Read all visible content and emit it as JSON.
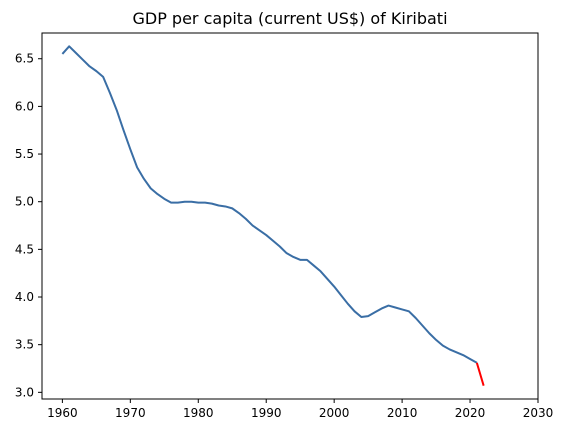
{
  "chart_data": {
    "type": "line",
    "title": "GDP per capita (current US$) of Kiribati",
    "xlabel": "",
    "ylabel": "",
    "xlim": [
      1957,
      2030
    ],
    "ylim": [
      2.93,
      6.77
    ],
    "xticks": [
      1960,
      1970,
      1980,
      1990,
      2000,
      2010,
      2020,
      2030
    ],
    "yticks": [
      3.0,
      3.5,
      4.0,
      4.5,
      5.0,
      5.5,
      6.0,
      6.5
    ],
    "ytick_labels": [
      "3.0",
      "3.5",
      "4.0",
      "4.5",
      "5.0",
      "5.5",
      "6.0",
      "6.5"
    ],
    "grid": false,
    "series": [
      {
        "color": "#3a6ea5",
        "x": [
          1960,
          1961,
          1962,
          1963,
          1964,
          1965,
          1966,
          1967,
          1968,
          1969,
          1970,
          1971,
          1972,
          1973,
          1974,
          1975,
          1976,
          1977,
          1978,
          1979,
          1980,
          1981,
          1982,
          1983,
          1984,
          1985,
          1986,
          1987,
          1988,
          1989,
          1990,
          1991,
          1992,
          1993,
          1994,
          1995,
          1996,
          1997,
          1998,
          1999,
          2000,
          2001,
          2002,
          2003,
          2004,
          2005,
          2006,
          2007,
          2008,
          2009,
          2010,
          2011,
          2012,
          2013,
          2014,
          2015,
          2016,
          2017,
          2018,
          2019,
          2020,
          2021
        ],
        "y": [
          6.55,
          6.63,
          6.56,
          6.49,
          6.42,
          6.37,
          6.31,
          6.14,
          5.96,
          5.75,
          5.55,
          5.36,
          5.24,
          5.14,
          5.08,
          5.03,
          4.99,
          4.99,
          5.0,
          5.0,
          4.99,
          4.99,
          4.98,
          4.96,
          4.95,
          4.93,
          4.88,
          4.82,
          4.75,
          4.7,
          4.65,
          4.59,
          4.53,
          4.46,
          4.42,
          4.39,
          4.39,
          4.33,
          4.27,
          4.19,
          4.11,
          4.02,
          3.93,
          3.85,
          3.79,
          3.8,
          3.84,
          3.88,
          3.91,
          3.89,
          3.87,
          3.85,
          3.78,
          3.7,
          3.62,
          3.55,
          3.49,
          3.45,
          3.42,
          3.39,
          3.35,
          3.31
        ]
      },
      {
        "color": "#ff0000",
        "x": [
          2021,
          2022
        ],
        "y": [
          3.31,
          3.07
        ]
      }
    ]
  }
}
